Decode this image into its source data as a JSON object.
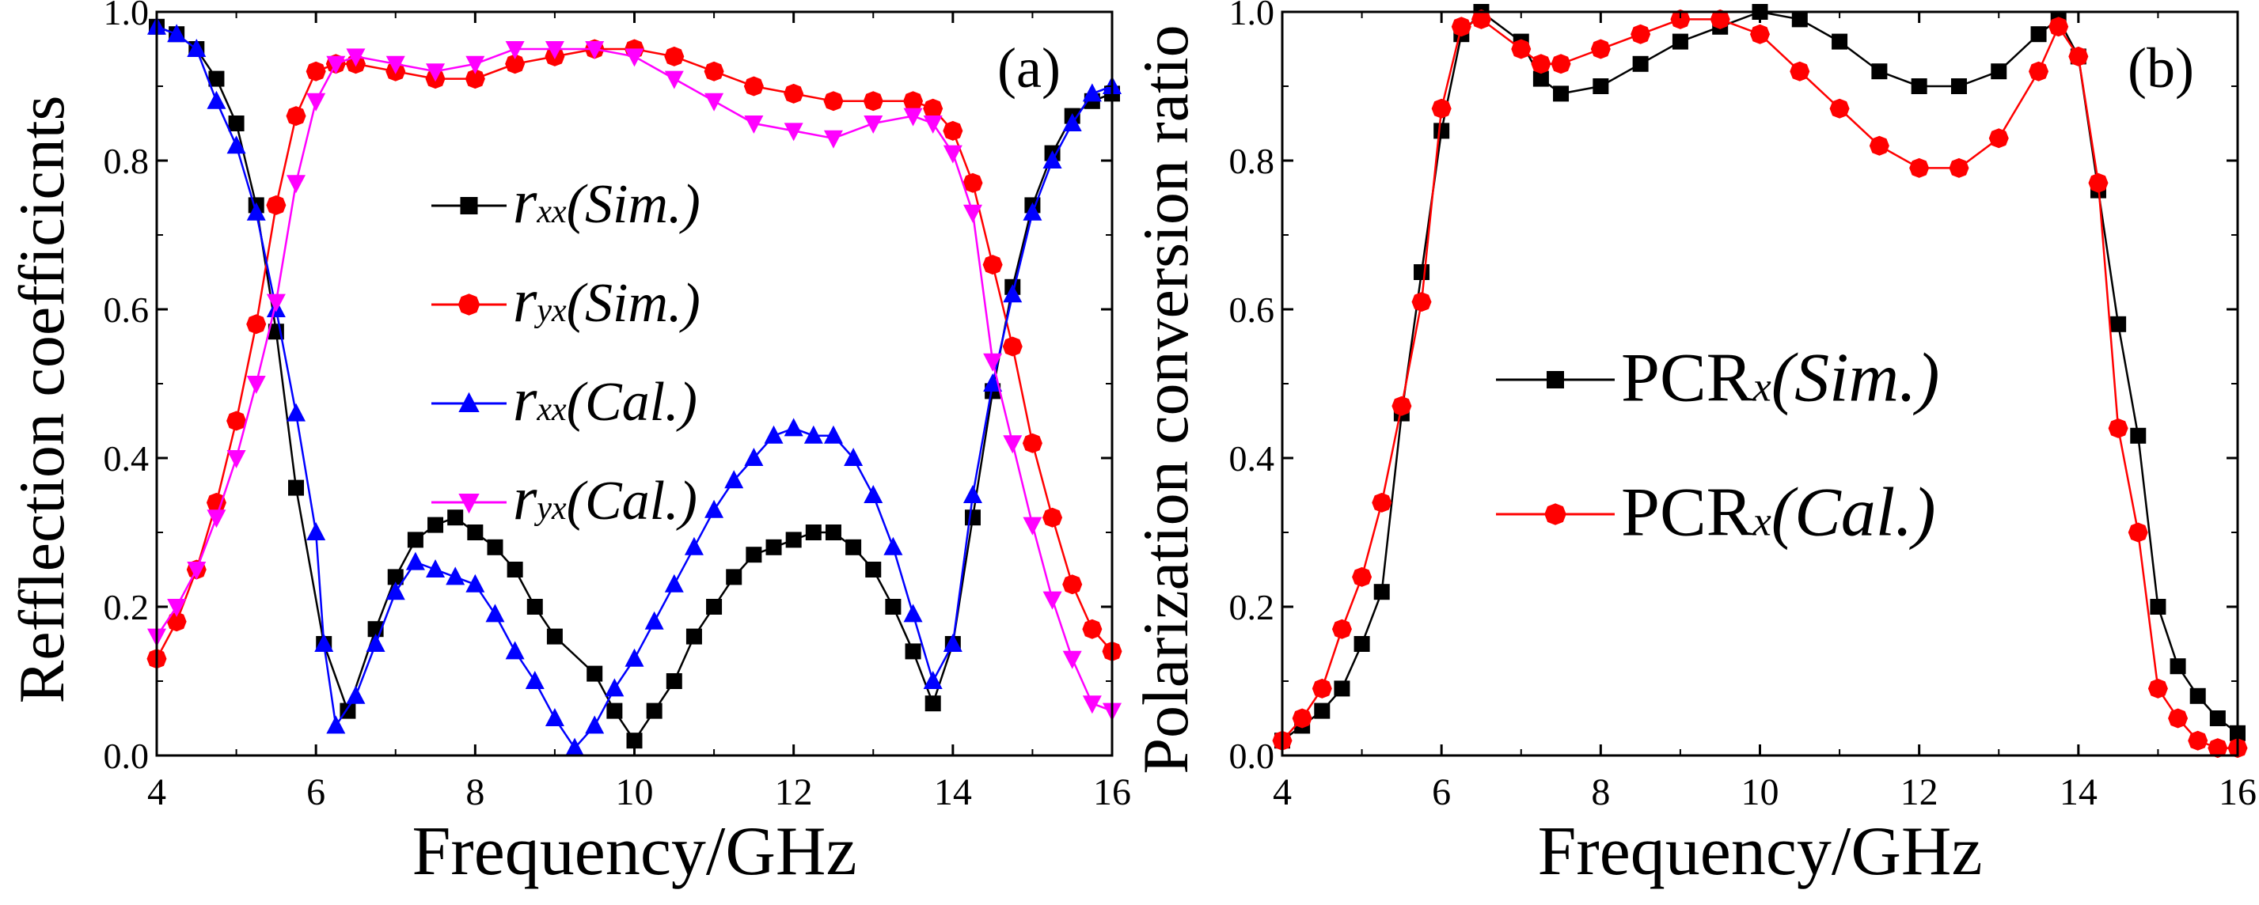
{
  "chart_data": [
    {
      "type": "line",
      "panel_label": "(a)",
      "xlabel": "Frequency/GHz",
      "ylabel": "Refflection coefficicnts",
      "xlim": [
        4,
        16
      ],
      "ylim": [
        0,
        1.0
      ],
      "xticks": [
        "4",
        "6",
        "8",
        "10",
        "12",
        "14",
        "16"
      ],
      "yticks": [
        "0.0",
        "0.2",
        "0.4",
        "0.6",
        "0.8",
        "1.0"
      ],
      "legend_position": "center-left",
      "series": [
        {
          "name": "rxx(Sim.)",
          "sym": "r",
          "sub": "xx",
          "paren": "(Sim.)",
          "color": "#000000",
          "marker": "square",
          "x": [
            4,
            4.25,
            4.5,
            4.75,
            5,
            5.25,
            5.5,
            5.75,
            6.1,
            6.4,
            6.75,
            7,
            7.25,
            7.5,
            7.75,
            8,
            8.25,
            8.5,
            8.75,
            9,
            9.5,
            9.75,
            10,
            10.25,
            10.5,
            10.75,
            11,
            11.25,
            11.5,
            11.75,
            12,
            12.25,
            12.5,
            12.75,
            13,
            13.25,
            13.5,
            13.75,
            14,
            14.25,
            14.5,
            14.75,
            15,
            15.25,
            15.5,
            15.75,
            16
          ],
          "y": [
            0.98,
            0.97,
            0.95,
            0.91,
            0.85,
            0.74,
            0.57,
            0.36,
            0.15,
            0.06,
            0.17,
            0.24,
            0.29,
            0.31,
            0.32,
            0.3,
            0.28,
            0.25,
            0.2,
            0.16,
            0.11,
            0.06,
            0.02,
            0.06,
            0.1,
            0.16,
            0.2,
            0.24,
            0.27,
            0.28,
            0.29,
            0.3,
            0.3,
            0.28,
            0.25,
            0.2,
            0.14,
            0.07,
            0.15,
            0.32,
            0.49,
            0.63,
            0.74,
            0.81,
            0.86,
            0.88,
            0.89
          ]
        },
        {
          "name": "ryx(Sim.)",
          "sym": "r",
          "sub": "yx",
          "paren": "(Sim.)",
          "color": "#ff0000",
          "marker": "circle",
          "x": [
            4,
            4.25,
            4.5,
            4.75,
            5,
            5.25,
            5.5,
            5.75,
            6,
            6.25,
            6.5,
            7,
            7.5,
            8,
            8.5,
            9,
            9.5,
            10,
            10.5,
            11,
            11.5,
            12,
            12.5,
            13,
            13.5,
            13.75,
            14,
            14.25,
            14.5,
            14.75,
            15,
            15.25,
            15.5,
            15.75,
            16
          ],
          "y": [
            0.13,
            0.18,
            0.25,
            0.34,
            0.45,
            0.58,
            0.74,
            0.86,
            0.92,
            0.93,
            0.93,
            0.92,
            0.91,
            0.91,
            0.93,
            0.94,
            0.95,
            0.95,
            0.94,
            0.92,
            0.9,
            0.89,
            0.88,
            0.88,
            0.88,
            0.87,
            0.84,
            0.77,
            0.66,
            0.55,
            0.42,
            0.32,
            0.23,
            0.17,
            0.14
          ]
        },
        {
          "name": "rxx(Cal.)",
          "sym": "r",
          "sub": "xx",
          "paren": "(Cal.)",
          "color": "#0000ff",
          "marker": "triangle-up",
          "x": [
            4,
            4.25,
            4.5,
            4.75,
            5,
            5.25,
            5.5,
            5.75,
            6,
            6.1,
            6.25,
            6.5,
            6.75,
            7,
            7.25,
            7.5,
            7.75,
            8,
            8.25,
            8.5,
            8.75,
            9,
            9.25,
            9.5,
            9.75,
            10,
            10.25,
            10.5,
            10.75,
            11,
            11.25,
            11.5,
            11.75,
            12,
            12.25,
            12.5,
            12.75,
            13,
            13.25,
            13.5,
            13.75,
            14,
            14.25,
            14.5,
            14.75,
            15,
            15.25,
            15.5,
            15.75,
            16
          ],
          "y": [
            0.98,
            0.97,
            0.95,
            0.88,
            0.82,
            0.73,
            0.6,
            0.46,
            0.3,
            0.15,
            0.04,
            0.08,
            0.15,
            0.22,
            0.26,
            0.25,
            0.24,
            0.23,
            0.19,
            0.14,
            0.1,
            0.05,
            0.01,
            0.04,
            0.09,
            0.13,
            0.18,
            0.23,
            0.28,
            0.33,
            0.37,
            0.4,
            0.43,
            0.44,
            0.43,
            0.43,
            0.4,
            0.35,
            0.28,
            0.19,
            0.1,
            0.15,
            0.35,
            0.5,
            0.62,
            0.73,
            0.8,
            0.85,
            0.89,
            0.9
          ]
        },
        {
          "name": "ryx(Cal.)",
          "sym": "r",
          "sub": "yx",
          "paren": "(Cal.)",
          "color": "#ff00ff",
          "marker": "triangle-down",
          "x": [
            4,
            4.25,
            4.5,
            4.75,
            5,
            5.25,
            5.5,
            5.75,
            6,
            6.25,
            6.5,
            7,
            7.5,
            8,
            8.5,
            9,
            9.5,
            10,
            10.5,
            11,
            11.5,
            12,
            12.5,
            13,
            13.5,
            13.75,
            14,
            14.25,
            14.5,
            14.75,
            15,
            15.25,
            15.5,
            15.75,
            16
          ],
          "y": [
            0.16,
            0.2,
            0.25,
            0.32,
            0.4,
            0.5,
            0.61,
            0.77,
            0.88,
            0.93,
            0.94,
            0.93,
            0.92,
            0.93,
            0.95,
            0.95,
            0.95,
            0.94,
            0.91,
            0.88,
            0.85,
            0.84,
            0.83,
            0.85,
            0.86,
            0.85,
            0.81,
            0.73,
            0.53,
            0.42,
            0.31,
            0.21,
            0.13,
            0.07,
            0.06
          ]
        }
      ]
    },
    {
      "type": "line",
      "panel_label": "(b)",
      "xlabel": "Frequency/GHz",
      "ylabel": "Polarization conversion ratio",
      "xlim": [
        4,
        16
      ],
      "ylim": [
        0,
        1.0
      ],
      "xticks": [
        "4",
        "6",
        "8",
        "10",
        "12",
        "14",
        "16"
      ],
      "yticks": [
        "0.0",
        "0.2",
        "0.4",
        "0.6",
        "0.8",
        "1.0"
      ],
      "legend_position": "center",
      "series": [
        {
          "name": "PCRx(Sim.)",
          "sym": "PCR",
          "sub": "x",
          "paren": "(Sim.)",
          "color": "#000000",
          "marker": "square",
          "x": [
            4,
            4.25,
            4.5,
            4.75,
            5,
            5.25,
            5.5,
            5.75,
            6,
            6.25,
            6.5,
            7,
            7.25,
            7.5,
            8,
            8.5,
            9,
            9.5,
            10,
            10.5,
            11,
            11.5,
            12,
            12.5,
            13,
            13.5,
            13.75,
            14,
            14.25,
            14.5,
            14.75,
            15,
            15.25,
            15.5,
            15.75,
            16
          ],
          "y": [
            0.02,
            0.04,
            0.06,
            0.09,
            0.15,
            0.22,
            0.46,
            0.65,
            0.84,
            0.97,
            1.0,
            0.96,
            0.91,
            0.89,
            0.9,
            0.93,
            0.96,
            0.98,
            1.0,
            0.99,
            0.96,
            0.92,
            0.9,
            0.9,
            0.92,
            0.97,
            0.99,
            0.94,
            0.76,
            0.58,
            0.43,
            0.2,
            0.12,
            0.08,
            0.05,
            0.03
          ]
        },
        {
          "name": "PCRx(Cal.)",
          "sym": "PCR",
          "sub": "x",
          "paren": "(Cal.)",
          "color": "#ff0000",
          "marker": "circle",
          "x": [
            4,
            4.25,
            4.5,
            4.75,
            5,
            5.25,
            5.5,
            5.75,
            6,
            6.25,
            6.5,
            7,
            7.25,
            7.5,
            8,
            8.5,
            9,
            9.5,
            10,
            10.5,
            11,
            11.5,
            12,
            12.5,
            13,
            13.5,
            13.75,
            14,
            14.25,
            14.5,
            14.75,
            15,
            15.25,
            15.5,
            15.75,
            16
          ],
          "y": [
            0.02,
            0.05,
            0.09,
            0.17,
            0.24,
            0.34,
            0.47,
            0.61,
            0.87,
            0.98,
            0.99,
            0.95,
            0.93,
            0.93,
            0.95,
            0.97,
            0.99,
            0.99,
            0.97,
            0.92,
            0.87,
            0.82,
            0.79,
            0.79,
            0.83,
            0.92,
            0.98,
            0.94,
            0.77,
            0.44,
            0.3,
            0.09,
            0.05,
            0.02,
            0.01,
            0.01
          ]
        }
      ]
    }
  ]
}
